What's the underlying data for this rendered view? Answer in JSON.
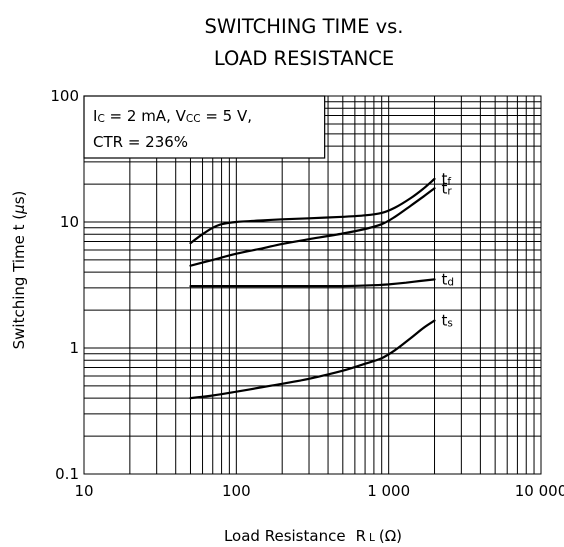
{
  "chart_data": {
    "type": "line",
    "title_line1": "SWITCHING TIME vs.",
    "title_line2": "LOAD RESISTANCE",
    "xlabel": "Load Resistance",
    "xlabel_symbol_main": "R",
    "xlabel_symbol_sub": "L",
    "xlabel_unit": "(Ω)",
    "ylabel": "Switching Time  t (",
    "ylabel_mu": "μ",
    "ylabel_unit": "s)",
    "x_scale": "log",
    "y_scale": "log",
    "xlim": [
      10,
      10000
    ],
    "ylim": [
      0.1,
      100
    ],
    "grid": true,
    "x_ticks": [
      10,
      100,
      1000,
      10000
    ],
    "x_tick_labels": [
      "10",
      "100",
      "1 000",
      "10 000"
    ],
    "y_ticks": [
      100,
      10,
      1,
      0.1
    ],
    "y_tick_labels": [
      "100",
      "10",
      "1",
      "0.1"
    ],
    "annotation": {
      "ic_main": "I",
      "ic_sub": "C",
      "ic_rest": " = 2 mA, V",
      "vcc_sub": "CC",
      "vcc_rest": " = 5 V,",
      "line2": "CTR = 236%"
    },
    "series": [
      {
        "name_main": "t",
        "name_sub": "f",
        "x": [
          50,
          60,
          70,
          80,
          100,
          150,
          200,
          300,
          500,
          700,
          900,
          1100,
          1400,
          1700,
          2000
        ],
        "y": [
          6.8,
          8.0,
          9.0,
          9.6,
          10.0,
          10.3,
          10.5,
          10.7,
          11.0,
          11.3,
          11.8,
          13.0,
          15.5,
          18.5,
          22.0
        ]
      },
      {
        "name_main": "t",
        "name_sub": "r",
        "x": [
          50,
          70,
          100,
          150,
          200,
          300,
          500,
          700,
          900,
          1100,
          1400,
          1700,
          2000
        ],
        "y": [
          4.5,
          5.0,
          5.6,
          6.2,
          6.7,
          7.3,
          8.1,
          8.8,
          9.6,
          11.0,
          13.5,
          16.0,
          18.5
        ]
      },
      {
        "name_main": "t",
        "name_sub": "d",
        "x": [
          50,
          100,
          200,
          500,
          800,
          1000,
          1300,
          1600,
          2000
        ],
        "y": [
          3.1,
          3.1,
          3.1,
          3.1,
          3.15,
          3.2,
          3.3,
          3.4,
          3.5
        ]
      },
      {
        "name_main": "t",
        "name_sub": "s",
        "x": [
          50,
          70,
          100,
          150,
          200,
          300,
          500,
          700,
          900,
          1100,
          1400,
          1700,
          2000
        ],
        "y": [
          0.4,
          0.42,
          0.45,
          0.49,
          0.52,
          0.57,
          0.66,
          0.75,
          0.83,
          0.96,
          1.2,
          1.45,
          1.65
        ]
      }
    ]
  }
}
